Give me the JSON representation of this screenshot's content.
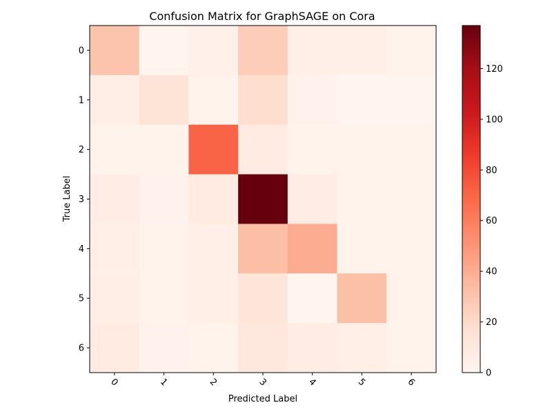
{
  "chart_data": {
    "type": "heatmap",
    "title": "Confusion Matrix for GraphSAGE on Cora",
    "xlabel": "Predicted Label",
    "ylabel": "True Label",
    "x_categories": [
      "0",
      "1",
      "2",
      "3",
      "4",
      "5",
      "6"
    ],
    "y_categories": [
      "0",
      "1",
      "2",
      "3",
      "4",
      "5",
      "6"
    ],
    "values": [
      [
        30,
        1,
        4,
        26,
        5,
        5,
        2
      ],
      [
        6,
        14,
        2,
        18,
        3,
        1,
        1
      ],
      [
        2,
        2,
        71,
        8,
        2,
        2,
        2
      ],
      [
        7,
        3,
        8,
        137,
        7,
        2,
        2
      ],
      [
        5,
        2,
        5,
        33,
        40,
        2,
        2
      ],
      [
        6,
        2,
        5,
        13,
        1,
        32,
        2
      ],
      [
        8,
        3,
        2,
        11,
        7,
        5,
        2
      ]
    ],
    "colormap": "Reds",
    "colorbar": {
      "range": [
        0,
        137
      ],
      "ticks": [
        0,
        20,
        40,
        60,
        80,
        100,
        120
      ]
    },
    "x_tick_rotation": 45,
    "grid": false
  }
}
